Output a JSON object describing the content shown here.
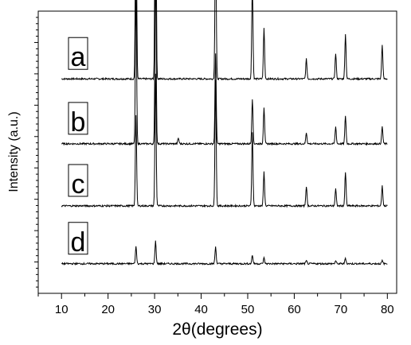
{
  "chart_data": {
    "type": "line",
    "title": "",
    "xlabel": "2θ(degrees)",
    "ylabel": "Intensity (a.u.)",
    "xlim": [
      5,
      82
    ],
    "xticks": [
      10,
      20,
      30,
      40,
      50,
      60,
      70,
      80
    ],
    "xtick_labels": [
      "10",
      "20",
      "30",
      "40",
      "50",
      "60",
      "70",
      "80"
    ],
    "y_ticks_labeled": false,
    "grid": false,
    "series": [
      {
        "name": "a",
        "baseline": 0.76,
        "peaks": [
          [
            26.0,
            0.74
          ],
          [
            30.2,
            1.0
          ],
          [
            43.1,
            0.55
          ],
          [
            51.0,
            0.34
          ],
          [
            53.5,
            0.18
          ],
          [
            62.6,
            0.07
          ],
          [
            68.9,
            0.09
          ],
          [
            71.0,
            0.16
          ],
          [
            78.9,
            0.12
          ]
        ]
      },
      {
        "name": "b",
        "baseline": 0.53,
        "peaks": [
          [
            26.0,
            0.55
          ],
          [
            30.2,
            0.64
          ],
          [
            35.1,
            0.02
          ],
          [
            43.1,
            0.32
          ],
          [
            51.0,
            0.16
          ],
          [
            53.5,
            0.13
          ],
          [
            62.6,
            0.04
          ],
          [
            68.9,
            0.06
          ],
          [
            71.0,
            0.1
          ],
          [
            78.9,
            0.06
          ]
        ]
      },
      {
        "name": "c",
        "baseline": 0.31,
        "peaks": [
          [
            26.0,
            0.32
          ],
          [
            30.2,
            0.47
          ],
          [
            43.1,
            0.45
          ],
          [
            51.0,
            0.26
          ],
          [
            53.5,
            0.12
          ],
          [
            62.6,
            0.07
          ],
          [
            68.9,
            0.06
          ],
          [
            71.0,
            0.12
          ],
          [
            78.9,
            0.07
          ]
        ]
      },
      {
        "name": "d",
        "baseline": 0.105,
        "peaks": [
          [
            26.0,
            0.06
          ],
          [
            30.2,
            0.08
          ],
          [
            43.1,
            0.06
          ],
          [
            51.0,
            0.03
          ],
          [
            53.5,
            0.02
          ],
          [
            62.6,
            0.01
          ],
          [
            68.9,
            0.01
          ],
          [
            71.0,
            0.02
          ],
          [
            78.9,
            0.01
          ]
        ]
      }
    ]
  }
}
